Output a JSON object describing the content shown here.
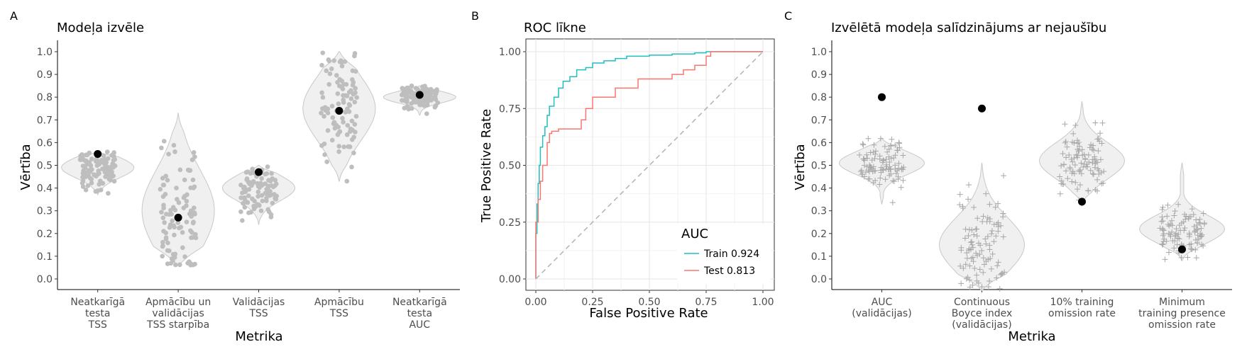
{
  "chart_data": [
    {
      "panel": "A",
      "type": "violin",
      "title": "Modeļa izvēle",
      "xlabel": "Metrika",
      "ylabel": "Vērtība",
      "ylim": [
        0,
        1
      ],
      "yticks": [
        "0.0",
        "0.1",
        "0.2",
        "0.3",
        "0.4",
        "0.5",
        "0.6",
        "0.7",
        "0.8",
        "0.9",
        "1.0"
      ],
      "categories": [
        [
          "Neatkarīgā",
          "testa",
          "TSS"
        ],
        [
          "Apmācību un",
          "validācijas",
          "TSS starpība"
        ],
        [
          "Validācijas",
          "TSS"
        ],
        [
          "Apmācību",
          "TSS"
        ],
        [
          "Neatkarīgā",
          "testa",
          "AUC"
        ]
      ],
      "distributions": [
        {
          "min": 0.37,
          "max": 0.56,
          "center": 0.49,
          "spread": 0.045
        },
        {
          "min": 0.06,
          "max": 0.73,
          "center": 0.3,
          "spread": 0.18
        },
        {
          "min": 0.24,
          "max": 0.5,
          "center": 0.4,
          "spread": 0.055
        },
        {
          "min": 0.43,
          "max": 1.0,
          "center": 0.75,
          "spread": 0.14
        },
        {
          "min": 0.72,
          "max": 0.85,
          "center": 0.8,
          "spread": 0.025
        }
      ],
      "selected_values": [
        0.55,
        0.27,
        0.47,
        0.74,
        0.81
      ],
      "point_color": "#bebebe",
      "selected_color": "#000000"
    },
    {
      "panel": "B",
      "type": "line",
      "title": "ROC līkne",
      "xlabel": "False Positive Rate",
      "ylabel": "True Positive Rate",
      "xlim": [
        0,
        1
      ],
      "ylim": [
        0,
        1
      ],
      "xticks": [
        "0.00",
        "0.25",
        "0.50",
        "0.75",
        "1.00"
      ],
      "yticks": [
        "0.00",
        "0.25",
        "0.50",
        "0.75",
        "1.00"
      ],
      "legend_title": "AUC",
      "legend_position": "bottom-right",
      "series": [
        {
          "name": "Train 0.924",
          "color": "#1fbfc4",
          "x": [
            0,
            0.005,
            0.01,
            0.015,
            0.02,
            0.03,
            0.04,
            0.05,
            0.06,
            0.08,
            0.1,
            0.12,
            0.15,
            0.18,
            0.22,
            0.25,
            0.3,
            0.35,
            0.4,
            0.45,
            0.5,
            0.6,
            0.7,
            0.75,
            0.8,
            0.9,
            1.0
          ],
          "y": [
            0,
            0.2,
            0.33,
            0.42,
            0.5,
            0.58,
            0.63,
            0.67,
            0.72,
            0.76,
            0.8,
            0.84,
            0.87,
            0.89,
            0.92,
            0.93,
            0.95,
            0.96,
            0.97,
            0.98,
            0.98,
            0.985,
            0.99,
            0.995,
            1.0,
            1.0,
            1.0
          ]
        },
        {
          "name": "Test 0.813",
          "color": "#f8766d",
          "x": [
            0,
            0.01,
            0.02,
            0.03,
            0.05,
            0.06,
            0.07,
            0.1,
            0.15,
            0.2,
            0.22,
            0.25,
            0.3,
            0.35,
            0.4,
            0.45,
            0.5,
            0.55,
            0.6,
            0.65,
            0.7,
            0.75,
            0.77,
            0.8,
            1.0
          ],
          "y": [
            0,
            0.25,
            0.35,
            0.43,
            0.5,
            0.6,
            0.64,
            0.65,
            0.66,
            0.66,
            0.7,
            0.75,
            0.8,
            0.8,
            0.84,
            0.84,
            0.88,
            0.88,
            0.88,
            0.9,
            0.92,
            0.94,
            0.98,
            1.0,
            1.0
          ]
        },
        {
          "name": "",
          "color": "#b3b3b3",
          "dashed": true,
          "x": [
            0,
            1
          ],
          "y": [
            0,
            1
          ]
        }
      ]
    },
    {
      "panel": "C",
      "type": "violin",
      "title": "Izvēlētā modeļa salīdzinājums ar nejaušību",
      "xlabel": "Metrika",
      "ylabel": "Vērtība",
      "ylim": [
        0,
        1
      ],
      "yticks": [
        "0.0",
        "0.1",
        "0.2",
        "0.3",
        "0.4",
        "0.5",
        "0.6",
        "0.7",
        "0.8",
        "0.9",
        "1.0"
      ],
      "categories": [
        [
          "AUC",
          "(validācijas)"
        ],
        [
          "Continuous",
          "Boyce index",
          "(validācijas)"
        ],
        [
          "10% training",
          "omission rate"
        ],
        [
          "Minimum",
          "training presence",
          "omission rate"
        ]
      ],
      "distributions": [
        {
          "min": 0.33,
          "max": 0.62,
          "center": 0.51,
          "spread": 0.05
        },
        {
          "min": -0.05,
          "max": 0.51,
          "center": 0.15,
          "spread": 0.12
        },
        {
          "min": 0.32,
          "max": 0.78,
          "center": 0.52,
          "spread": 0.08
        },
        {
          "min": 0.08,
          "max": 0.51,
          "center": 0.22,
          "spread": 0.06
        }
      ],
      "selected_values": [
        0.8,
        0.75,
        0.34,
        0.13
      ],
      "point_color": "#bebebe",
      "selected_color": "#000000"
    }
  ]
}
